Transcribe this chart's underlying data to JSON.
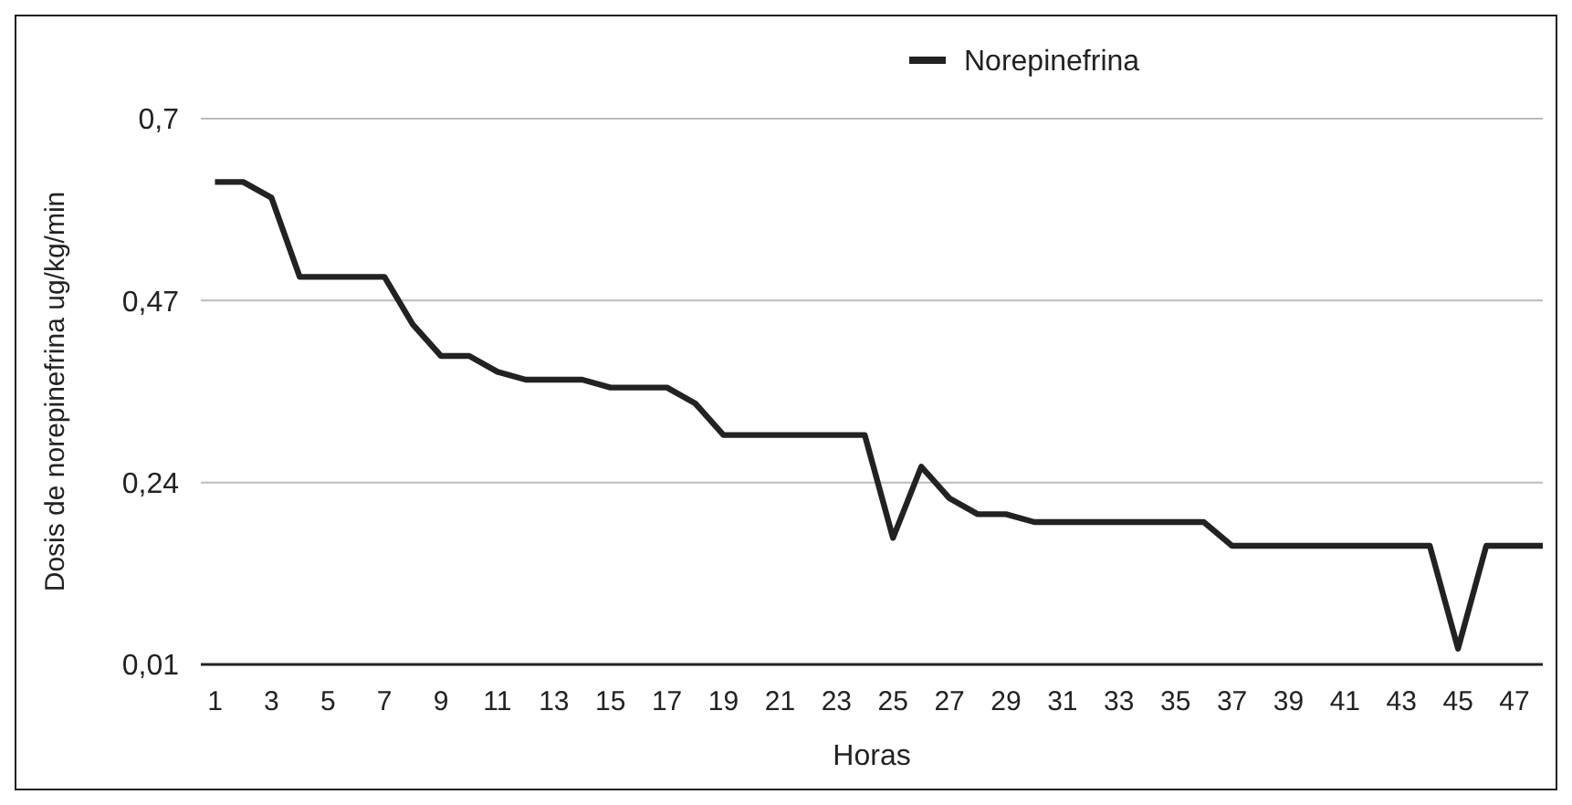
{
  "chart_data": {
    "type": "line",
    "xlabel": "Horas",
    "ylabel": "Dosis de norepinefrina ug/kg/min",
    "x": [
      1,
      2,
      3,
      4,
      5,
      6,
      7,
      8,
      9,
      10,
      11,
      12,
      13,
      14,
      15,
      16,
      17,
      18,
      19,
      20,
      21,
      22,
      23,
      24,
      25,
      26,
      27,
      28,
      29,
      30,
      31,
      32,
      33,
      34,
      35,
      36,
      37,
      38,
      39,
      40,
      41,
      42,
      43,
      44,
      45,
      46,
      47,
      48
    ],
    "xlim": [
      0.5,
      48
    ],
    "xticks": [
      1,
      3,
      5,
      7,
      9,
      11,
      13,
      15,
      17,
      19,
      21,
      23,
      25,
      27,
      29,
      31,
      33,
      35,
      37,
      39,
      41,
      43,
      45,
      47
    ],
    "series": [
      {
        "name": "Norepinefrina",
        "color": "#222222",
        "values": [
          0.62,
          0.62,
          0.6,
          0.5,
          0.5,
          0.5,
          0.5,
          0.44,
          0.4,
          0.4,
          0.38,
          0.37,
          0.37,
          0.37,
          0.36,
          0.36,
          0.36,
          0.34,
          0.3,
          0.3,
          0.3,
          0.3,
          0.3,
          0.3,
          0.17,
          0.26,
          0.22,
          0.2,
          0.2,
          0.19,
          0.19,
          0.19,
          0.19,
          0.19,
          0.19,
          0.19,
          0.16,
          0.16,
          0.16,
          0.16,
          0.16,
          0.16,
          0.16,
          0.16,
          0.03,
          0.16,
          0.16,
          0.16
        ]
      }
    ],
    "ylim": [
      0.01,
      0.7
    ],
    "yticks": [
      {
        "value": 0.01,
        "label": "0,01"
      },
      {
        "value": 0.24,
        "label": "0,24"
      },
      {
        "value": 0.47,
        "label": "0,47"
      },
      {
        "value": 0.7,
        "label": "0,7"
      }
    ],
    "grid": "y",
    "legend": "top",
    "marker": "none",
    "line_style": "solid"
  }
}
